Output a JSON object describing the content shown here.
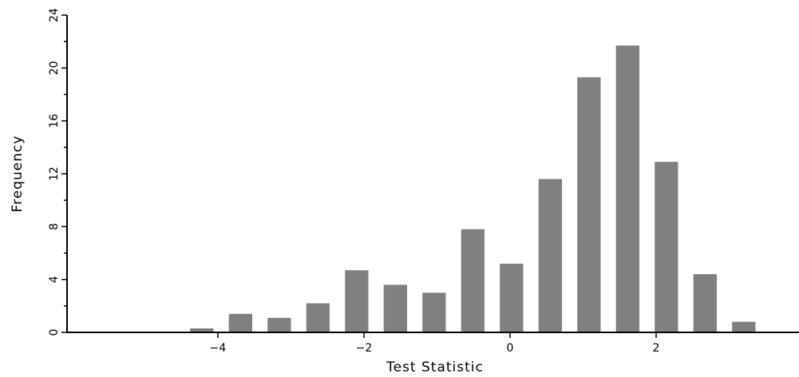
{
  "chart_data": {
    "type": "bar",
    "title": "",
    "xlabel": "Test Statistic",
    "ylabel": "Frequency",
    "xlim": [
      -6,
      4
    ],
    "ylim": [
      0,
      24
    ],
    "x_ticks": [
      -4,
      -2,
      0,
      2
    ],
    "x_tick_labels": [
      "−4",
      "−2",
      "0",
      "2"
    ],
    "y_ticks": [
      0,
      4,
      8,
      12,
      16,
      20,
      24
    ],
    "y_tick_labels": [
      "0",
      "4",
      "8",
      "12",
      "16",
      "20",
      "24"
    ],
    "bin_width": 0.53,
    "bar_width": 0.32,
    "bin_centers": [
      -4.22,
      -3.69,
      -3.16,
      -2.63,
      -2.1,
      -1.57,
      -1.04,
      -0.51,
      0.02,
      0.55,
      1.08,
      1.61,
      2.14,
      2.67,
      3.2
    ],
    "values": [
      0.3,
      1.4,
      1.1,
      2.2,
      4.7,
      3.6,
      3.0,
      7.8,
      5.2,
      11.6,
      19.3,
      21.7,
      12.9,
      4.4,
      0.8
    ],
    "bar_color": "#808080",
    "grid": false,
    "legend": "none"
  }
}
